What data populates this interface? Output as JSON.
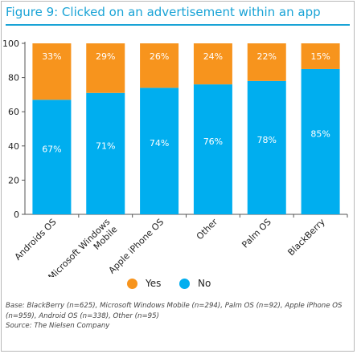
{
  "title": "Figure 9: Clicked on an advertisement within an app",
  "colors": {
    "accent": "#19a3d6",
    "yes": "#f7941d",
    "no": "#00aeef"
  },
  "chart_data": {
    "type": "bar",
    "stacked": true,
    "categories": [
      "Androids OS",
      "Microsoft Windows Mobile",
      "Apple iPhone OS",
      "Other",
      "Palm OS",
      "BlackBerry"
    ],
    "category_lines": [
      [
        "Androids OS"
      ],
      [
        "Microsoft Windows",
        "Mobile"
      ],
      [
        "Apple iPhone OS"
      ],
      [
        "Other"
      ],
      [
        "Palm OS"
      ],
      [
        "BlackBerry"
      ]
    ],
    "series": [
      {
        "name": "No",
        "values": [
          67,
          71,
          74,
          76,
          78,
          85
        ],
        "labels": [
          "67%",
          "71%",
          "74%",
          "76%",
          "78%",
          "85%"
        ]
      },
      {
        "name": "Yes",
        "values": [
          33,
          29,
          26,
          24,
          22,
          15
        ],
        "labels": [
          "33%",
          "29%",
          "26%",
          "24%",
          "22%",
          "15%"
        ]
      }
    ],
    "yticks": [
      "0",
      "20",
      "40",
      "60",
      "80",
      "100"
    ],
    "ylim": [
      0,
      100
    ],
    "grid": false,
    "legend_position": "bottom"
  },
  "legend": {
    "yes_label": "Yes",
    "no_label": "No"
  },
  "footnote": {
    "base": "Base: BlackBerry (n=625), Microsoft Windows Mobile (n=294), Palm OS (n=92), Apple iPhone OS (n=959), Android OS (n=338), Other (n=95)",
    "source": "Source: The Nielsen Company"
  }
}
